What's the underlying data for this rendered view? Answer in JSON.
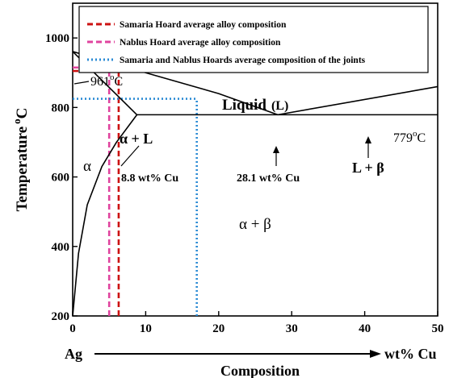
{
  "chart_data": {
    "type": "line",
    "ylabel": "Temperature",
    "ylabel_sup": "o",
    "ylabel_tail": "C",
    "xlabel": "Composition",
    "xlabel_left": "Ag",
    "xlabel_right": "wt% Cu",
    "xlim": [
      0,
      50
    ],
    "ylim": [
      200,
      1100
    ],
    "x_ticks": [
      0,
      10,
      20,
      30,
      40,
      50
    ],
    "y_ticks": [
      200,
      400,
      600,
      800,
      1000
    ],
    "legend": {
      "placement": "top",
      "items": [
        {
          "label": "Samaria Hoard average alloy composition",
          "color": "#cc1111",
          "style": "dashed"
        },
        {
          "label": "Nablus Hoard average alloy composition",
          "color": "#e0449f",
          "style": "dashed"
        },
        {
          "label": "Samaria and Nablus Hoards average composition of the joints",
          "color": "#2a8ad4",
          "style": "dotted"
        }
      ]
    },
    "series": [
      {
        "name": "Samaria Hoard average alloy composition",
        "color": "#cc1111",
        "style": "dashed",
        "segments": [
          [
            [
              6.3,
              200
            ],
            [
              6.3,
              905
            ]
          ],
          [
            [
              0,
              905
            ],
            [
              6.3,
              905
            ]
          ]
        ]
      },
      {
        "name": "Nablus Hoard average alloy composition",
        "color": "#e0449f",
        "style": "dashed",
        "segments": [
          [
            [
              5,
              200
            ],
            [
              5,
              915
            ]
          ],
          [
            [
              0,
              915
            ],
            [
              5,
              915
            ]
          ]
        ]
      },
      {
        "name": "Samaria and Nablus Hoards average composition of the joints",
        "color": "#2a8ad4",
        "style": "dotted",
        "segments": [
          [
            [
              17,
              200
            ],
            [
              17,
              825
            ]
          ],
          [
            [
              0,
              825
            ],
            [
              17,
              825
            ]
          ]
        ]
      }
    ],
    "phase_lines": [
      {
        "id": "liquidus-left",
        "points": [
          [
            0,
            961
          ],
          [
            10,
            900
          ],
          [
            20,
            840
          ],
          [
            28.1,
            779
          ]
        ]
      },
      {
        "id": "liquidus-right",
        "points": [
          [
            28.1,
            779
          ],
          [
            50,
            860
          ]
        ]
      },
      {
        "id": "solidus",
        "points": [
          [
            0,
            961
          ],
          [
            8.8,
            779
          ]
        ]
      },
      {
        "id": "eutectic",
        "points": [
          [
            8.8,
            779
          ],
          [
            50,
            779
          ]
        ]
      },
      {
        "id": "solvus",
        "points": [
          [
            8.8,
            779
          ],
          [
            6,
            700
          ],
          [
            4,
            630
          ],
          [
            2,
            520
          ],
          [
            0.8,
            380
          ],
          [
            0,
            200
          ]
        ]
      }
    ],
    "annotations": {
      "melting_point": {
        "value": "961",
        "sup": "o",
        "unit": "C"
      },
      "eutectic_temp": {
        "value": "779",
        "sup": "o",
        "unit": "C"
      },
      "alpha_limit": "8.8 wt% Cu",
      "eutectic_comp": "28.1 wt% Cu",
      "liquid_word": "Liquid",
      "liquid_abbr": "(L)",
      "alpha": "α",
      "alpha_plus_liquid": "α + L",
      "liquid_plus_beta": "L + β",
      "alpha_plus_beta": "α + β"
    }
  }
}
